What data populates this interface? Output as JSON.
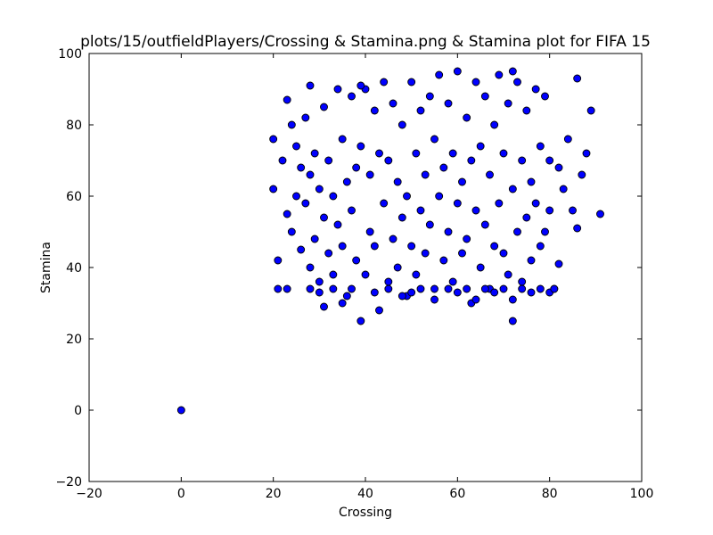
{
  "chart_data": {
    "type": "scatter",
    "title": "plots/15/outfieldPlayers/Crossing & Stamina.png & Stamina plot for FIFA 15",
    "xlabel": "Crossing",
    "ylabel": "Stamina",
    "xlim": [
      -20,
      100
    ],
    "ylim": [
      -20,
      100
    ],
    "xticks": [
      -20,
      0,
      20,
      40,
      60,
      80,
      100
    ],
    "yticks": [
      -20,
      0,
      20,
      40,
      60,
      80,
      100
    ],
    "xtick_labels": [
      "−20",
      "0",
      "20",
      "40",
      "60",
      "80",
      "100"
    ],
    "ytick_labels": [
      "−20",
      "0",
      "20",
      "40",
      "60",
      "80",
      "100"
    ],
    "marker_color": "#0000ff",
    "marker_edge_color": "#000000",
    "grid": false,
    "series": [
      {
        "values_note": "",
        "x": [
          0,
          20,
          20,
          21,
          22,
          23,
          23,
          24,
          24,
          25,
          25,
          26,
          26,
          27,
          27,
          28,
          28,
          28,
          29,
          29,
          30,
          30,
          31,
          31,
          32,
          32,
          33,
          33,
          34,
          34,
          35,
          35,
          36,
          36,
          37,
          37,
          38,
          38,
          39,
          39,
          40,
          40,
          41,
          41,
          42,
          42,
          43,
          43,
          44,
          44,
          45,
          45,
          46,
          46,
          47,
          47,
          48,
          48,
          49,
          49,
          50,
          50,
          51,
          51,
          52,
          52,
          53,
          53,
          54,
          54,
          55,
          55,
          56,
          56,
          57,
          57,
          58,
          58,
          59,
          59,
          60,
          60,
          61,
          61,
          62,
          62,
          63,
          63,
          64,
          64,
          65,
          65,
          66,
          66,
          67,
          67,
          68,
          68,
          69,
          69,
          70,
          70,
          71,
          71,
          72,
          72,
          73,
          73,
          74,
          74,
          75,
          75,
          76,
          76,
          77,
          77,
          78,
          78,
          79,
          79,
          80,
          80,
          81,
          82,
          83,
          84,
          85,
          86,
          87,
          88,
          89,
          91,
          39,
          72,
          28,
          86,
          82,
          23,
          21,
          30,
          31,
          33,
          35,
          37,
          42,
          45,
          48,
          50,
          52,
          55,
          58,
          60,
          62,
          64,
          66,
          68,
          70,
          72,
          74,
          76,
          78,
          80,
          81
        ],
        "y": [
          0,
          62,
          76,
          42,
          70,
          87,
          55,
          80,
          50,
          74,
          60,
          45,
          68,
          58,
          82,
          91,
          40,
          66,
          48,
          72,
          36,
          62,
          85,
          54,
          44,
          70,
          38,
          60,
          90,
          52,
          46,
          76,
          32,
          64,
          88,
          56,
          42,
          68,
          25,
          74,
          38,
          90,
          50,
          66,
          46,
          84,
          28,
          72,
          92,
          58,
          36,
          70,
          48,
          86,
          40,
          64,
          54,
          80,
          32,
          60,
          46,
          92,
          38,
          72,
          56,
          84,
          44,
          66,
          88,
          52,
          34,
          76,
          60,
          94,
          42,
          68,
          50,
          86,
          36,
          72,
          58,
          95,
          44,
          64,
          48,
          82,
          30,
          70,
          92,
          56,
          40,
          74,
          52,
          88,
          34,
          66,
          46,
          80,
          58,
          94,
          44,
          72,
          38,
          86,
          25,
          62,
          50,
          92,
          36,
          70,
          54,
          84,
          42,
          64,
          58,
          90,
          46,
          74,
          50,
          88,
          56,
          70,
          34,
          68,
          62,
          76,
          56,
          51,
          66,
          72,
          84,
          55,
          91,
          95,
          34,
          93,
          41,
          34,
          34,
          33,
          29,
          34,
          30,
          34,
          33,
          34,
          32,
          33,
          34,
          31,
          34,
          33,
          34,
          31,
          34,
          33,
          34,
          31,
          34,
          33,
          34,
          33,
          34
        ]
      }
    ]
  }
}
